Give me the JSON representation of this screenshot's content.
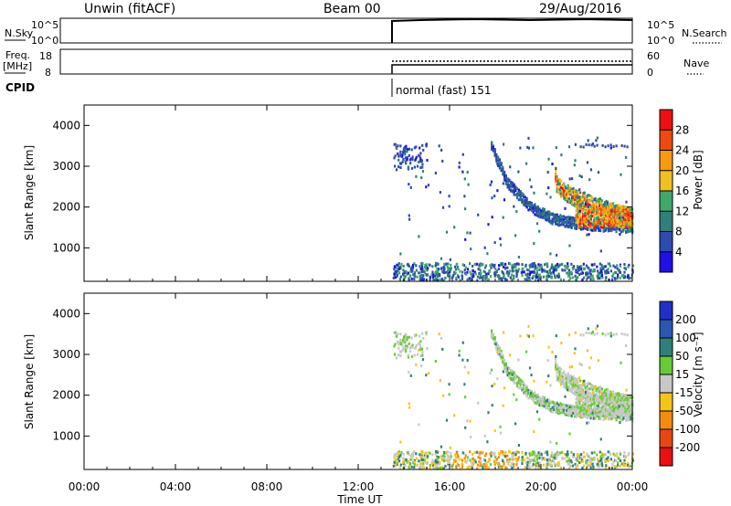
{
  "header": {
    "station": "Unwin (fitACF)",
    "beam": "Beam 00",
    "date": "29/Aug/2016"
  },
  "noise_panel": {
    "left_label": "N.Sky",
    "right_label": "N.Search",
    "left_ticks": [
      "10^5",
      "10^0"
    ],
    "right_ticks": [
      "10^5",
      "10^0"
    ]
  },
  "freq_panel": {
    "left_label_line1": "Freq.",
    "left_label_line2": "[MHz]",
    "left_ticks": [
      "18",
      "8"
    ],
    "right_ticks": [
      "60",
      "0"
    ],
    "right_label": "Nave"
  },
  "cpid_panel": {
    "label": "CPID",
    "mode_text": "normal (fast) 151"
  },
  "x_axis": {
    "title": "Time UT",
    "tick_labels": [
      "00:00",
      "04:00",
      "08:00",
      "12:00",
      "16:00",
      "20:00",
      "00:00"
    ],
    "range_hours": [
      0,
      24
    ]
  },
  "power_panel": {
    "ylabel": "Slant Range [km]",
    "y_ticks": [
      "1000",
      "2000",
      "3000",
      "4000"
    ],
    "colorbar_title": "Power [dB]",
    "colorbar_ticks": [
      "4",
      "8",
      "12",
      "16",
      "20",
      "24",
      "28"
    ],
    "colors": [
      "#1f10e6",
      "#2d4ab0",
      "#2f7f7a",
      "#3fa86a",
      "#f0c020",
      "#f79a10",
      "#ee4a10",
      "#ee1010"
    ]
  },
  "velocity_panel": {
    "ylabel": "Slant Range [km]",
    "y_ticks": [
      "1000",
      "2000",
      "3000",
      "4000"
    ],
    "colorbar_title": "Velocity [m s⁻¹]",
    "colorbar_ticks": [
      "200",
      "100",
      "50",
      "15",
      "-15",
      "-50",
      "-100",
      "-200"
    ],
    "colors": [
      "#2030c8",
      "#2a58b0",
      "#2f7f7a",
      "#66cc33",
      "#c8c8c8",
      "#f5c418",
      "#f58a10",
      "#e84810",
      "#e81010"
    ]
  },
  "chart_data": {
    "type": "heatmap",
    "title": "Unwin (fitACF) Beam 00 29/Aug/2016",
    "xlabel": "Time UT",
    "ylabel": "Slant Range [km]",
    "xlim": [
      0,
      24
    ],
    "ylim": [
      180,
      4500
    ],
    "data_start_hour": 13.5,
    "series": [
      {
        "name": "Power [dB]",
        "scale": [
          0,
          32
        ],
        "features": [
          {
            "kind": "scatter-patch",
            "t0": 13.5,
            "t1": 15.0,
            "r0": 3000,
            "r1": 3500,
            "value": 4
          },
          {
            "kind": "curved-band",
            "t": [
              17.8,
              18.5,
              19.5,
              20.5,
              22.0,
              24.0
            ],
            "r": [
              3500,
              2600,
              2000,
              1700,
              1550,
              1500
            ],
            "value": 8
          },
          {
            "kind": "dense-echo",
            "t0": 20.5,
            "t1": 24.0,
            "r0": 1400,
            "r1": 2700,
            "value": 20
          },
          {
            "kind": "ground-scatter",
            "t0": 13.5,
            "t1": 24.0,
            "r0": 200,
            "r1": 600,
            "value": 6
          }
        ]
      },
      {
        "name": "Velocity [m s⁻¹]",
        "scale": [
          -200,
          200
        ],
        "features": [
          {
            "kind": "curved-band",
            "t": [
              17.8,
              18.5,
              19.5,
              20.5,
              22.0,
              24.0
            ],
            "r": [
              3500,
              2600,
              2000,
              1700,
              1550,
              1500
            ],
            "value": 0
          },
          {
            "kind": "dense-echo",
            "t0": 20.5,
            "t1": 24.0,
            "r0": 1400,
            "r1": 2700,
            "value": -5
          },
          {
            "kind": "ground-scatter",
            "t0": 13.5,
            "t1": 24.0,
            "r0": 200,
            "r1": 600,
            "value": -30
          }
        ]
      }
    ]
  }
}
